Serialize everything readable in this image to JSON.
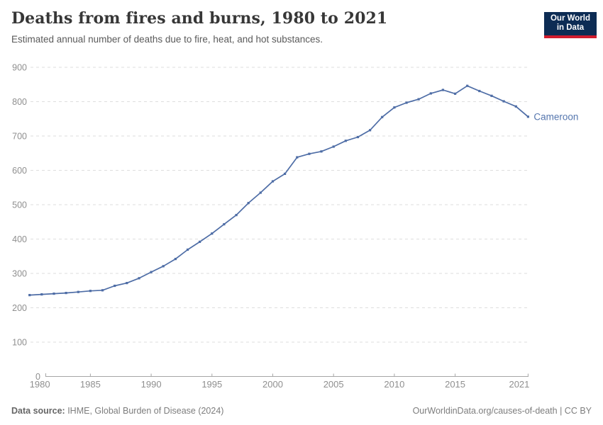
{
  "header": {
    "title": "Deaths from fires and burns, 1980 to 2021",
    "subtitle": "Estimated annual number of deaths due to fire, heat, and hot substances.",
    "logo": {
      "line1": "Our World",
      "line2": "in Data",
      "bg_color": "#0d2c54",
      "bar_color": "#d01c2e"
    }
  },
  "chart_data": {
    "type": "line",
    "title": "Deaths from fires and burns, 1980 to 2021",
    "subtitle": "Estimated annual number of deaths due to fire, heat, and hot substances.",
    "xlabel": "",
    "ylabel": "",
    "xlim": [
      1980,
      2021
    ],
    "ylim": [
      0,
      900
    ],
    "x_ticks": [
      1980,
      1985,
      1990,
      1995,
      2000,
      2005,
      2010,
      2015,
      2021
    ],
    "y_ticks": [
      0,
      100,
      200,
      300,
      400,
      500,
      600,
      700,
      800,
      900
    ],
    "grid": "horizontal-dashed",
    "grid_color": "#dedede",
    "axis_color": "#a6a6a6",
    "legend_position": "end-of-line-label",
    "series": [
      {
        "name": "Cameroon",
        "color": "#4e6da6",
        "label_color": "#5576ae",
        "x": [
          1980,
          1981,
          1982,
          1983,
          1984,
          1985,
          1986,
          1987,
          1988,
          1989,
          1990,
          1991,
          1992,
          1993,
          1994,
          1995,
          1996,
          1997,
          1998,
          1999,
          2000,
          2001,
          2002,
          2003,
          2004,
          2005,
          2006,
          2007,
          2008,
          2009,
          2010,
          2011,
          2012,
          2013,
          2014,
          2015,
          2016,
          2017,
          2018,
          2019,
          2020,
          2021
        ],
        "values": [
          237,
          239,
          241,
          243,
          246,
          249,
          251,
          264,
          272,
          286,
          304,
          321,
          342,
          369,
          392,
          416,
          443,
          470,
          505,
          535,
          568,
          590,
          638,
          648,
          655,
          669,
          686,
          697,
          717,
          755,
          783,
          797,
          807,
          824,
          834,
          823,
          846,
          831,
          817,
          801,
          786,
          756
        ]
      }
    ]
  },
  "footer": {
    "source_label": "Data source:",
    "source_text": " IHME, Global Burden of Disease (2024)",
    "citation": "OurWorldinData.org/causes-of-death | CC BY"
  }
}
